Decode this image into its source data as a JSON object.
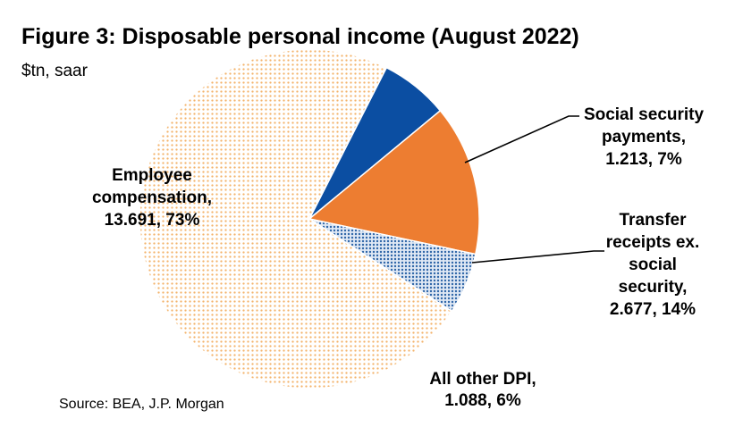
{
  "chart_data": {
    "type": "pie",
    "title": "Figure 3: Disposable personal income (August 2022)",
    "subtitle": "$tn, saar",
    "source": "Source: BEA, J.P. Morgan",
    "slices": [
      {
        "label_lines": [
          "Social security",
          "payments,",
          "1.213, 7%"
        ],
        "value": 1.213,
        "percent": 7,
        "color": "#0b4ea2",
        "pattern": "solid"
      },
      {
        "label_lines": [
          "Transfer",
          "receipts ex.",
          "social",
          "security,",
          "2.677, 14%"
        ],
        "value": 2.677,
        "percent": 14,
        "color": "#ed7d31",
        "pattern": "solid"
      },
      {
        "label_lines": [
          "All other DPI,",
          "1.088, 6%"
        ],
        "value": 1.088,
        "percent": 6,
        "color": "#4a7bb7",
        "pattern": "dots-blue"
      },
      {
        "label_lines": [
          "Employee",
          "compensation,",
          "13.691, 73%"
        ],
        "value": 13.691,
        "percent": 73,
        "color": "#f4b36a",
        "pattern": "dots-orange"
      }
    ]
  }
}
